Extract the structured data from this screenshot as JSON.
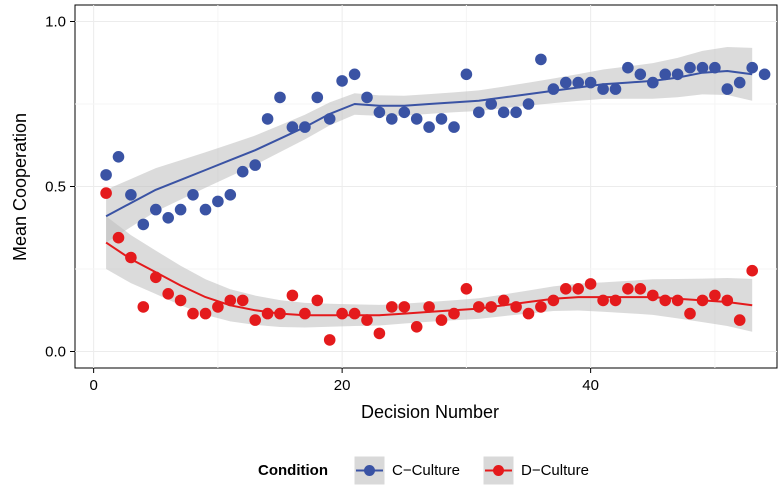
{
  "chart_data": {
    "type": "scatter",
    "title": "",
    "xlabel": "Decision Number",
    "ylabel": "Mean Cooperation",
    "xlim": [
      -1.5,
      55
    ],
    "ylim": [
      -0.05,
      1.05
    ],
    "x_ticks": [
      0,
      20,
      40
    ],
    "y_ticks": [
      0.0,
      0.5,
      1.0
    ],
    "x_tick_labels": [
      "0",
      "20",
      "40"
    ],
    "y_tick_labels": [
      "0.0",
      "0.5",
      "1.0"
    ],
    "grid": true,
    "legend_position": "bottom",
    "legend_title": "Condition",
    "series": [
      {
        "name": "C−Culture",
        "color": "#3a53a4",
        "x": [
          1,
          2,
          3,
          4,
          5,
          6,
          7,
          8,
          9,
          10,
          11,
          12,
          13,
          14,
          15,
          16,
          17,
          18,
          19,
          20,
          21,
          22,
          23,
          24,
          25,
          26,
          27,
          28,
          29,
          30,
          31,
          32,
          33,
          34,
          35,
          36,
          37,
          38,
          39,
          40,
          41,
          42,
          43,
          44,
          45,
          46,
          47,
          48,
          49,
          50,
          51,
          52,
          53,
          54
        ],
        "y": [
          0.535,
          0.59,
          0.475,
          0.385,
          0.43,
          0.405,
          0.43,
          0.475,
          0.43,
          0.455,
          0.475,
          0.545,
          0.565,
          0.705,
          0.77,
          0.68,
          0.68,
          0.77,
          0.705,
          0.82,
          0.84,
          0.77,
          0.725,
          0.705,
          0.725,
          0.705,
          0.68,
          0.705,
          0.68,
          0.84,
          0.725,
          0.75,
          0.725,
          0.725,
          0.75,
          0.885,
          0.795,
          0.815,
          0.815,
          0.815,
          0.795,
          0.795,
          0.86,
          0.84,
          0.815,
          0.84,
          0.84,
          0.86,
          0.86,
          0.86,
          0.795,
          0.815,
          0.86,
          0.84
        ],
        "smooth_x": [
          1,
          3,
          5,
          7,
          9,
          11,
          13,
          15,
          17,
          19,
          21,
          23,
          25,
          27,
          29,
          31,
          33,
          35,
          37,
          39,
          41,
          43,
          45,
          47,
          49,
          51,
          53
        ],
        "smooth_y": [
          0.41,
          0.45,
          0.49,
          0.52,
          0.55,
          0.58,
          0.61,
          0.645,
          0.68,
          0.72,
          0.75,
          0.745,
          0.745,
          0.75,
          0.755,
          0.76,
          0.77,
          0.78,
          0.79,
          0.8,
          0.81,
          0.815,
          0.82,
          0.83,
          0.845,
          0.85,
          0.84
        ]
      },
      {
        "name": "D−Culture",
        "color": "#e41a1c",
        "x": [
          1,
          2,
          3,
          4,
          5,
          6,
          7,
          8,
          9,
          10,
          11,
          12,
          13,
          14,
          15,
          16,
          17,
          18,
          19,
          20,
          21,
          22,
          23,
          24,
          25,
          26,
          27,
          28,
          29,
          30,
          31,
          32,
          33,
          34,
          35,
          36,
          37,
          38,
          39,
          40,
          41,
          42,
          43,
          44,
          45,
          46,
          47,
          48,
          49,
          50,
          51,
          52,
          53
        ],
        "y": [
          0.48,
          0.345,
          0.285,
          0.135,
          0.225,
          0.175,
          0.155,
          0.115,
          0.115,
          0.135,
          0.155,
          0.155,
          0.095,
          0.115,
          0.115,
          0.17,
          0.115,
          0.155,
          0.035,
          0.115,
          0.115,
          0.095,
          0.055,
          0.135,
          0.135,
          0.075,
          0.135,
          0.095,
          0.115,
          0.19,
          0.135,
          0.135,
          0.155,
          0.135,
          0.115,
          0.135,
          0.155,
          0.19,
          0.19,
          0.205,
          0.155,
          0.155,
          0.19,
          0.19,
          0.17,
          0.155,
          0.155,
          0.115,
          0.155,
          0.17,
          0.155,
          0.095,
          0.245
        ],
        "smooth_x": [
          1,
          3,
          5,
          7,
          9,
          11,
          13,
          15,
          17,
          19,
          21,
          23,
          25,
          27,
          29,
          31,
          33,
          35,
          37,
          39,
          41,
          43,
          45,
          47,
          49,
          51,
          53
        ],
        "smooth_y": [
          0.33,
          0.28,
          0.24,
          0.2,
          0.165,
          0.14,
          0.125,
          0.115,
          0.11,
          0.11,
          0.11,
          0.11,
          0.115,
          0.12,
          0.125,
          0.13,
          0.14,
          0.15,
          0.16,
          0.165,
          0.165,
          0.165,
          0.165,
          0.16,
          0.155,
          0.15,
          0.14
        ]
      }
    ]
  }
}
